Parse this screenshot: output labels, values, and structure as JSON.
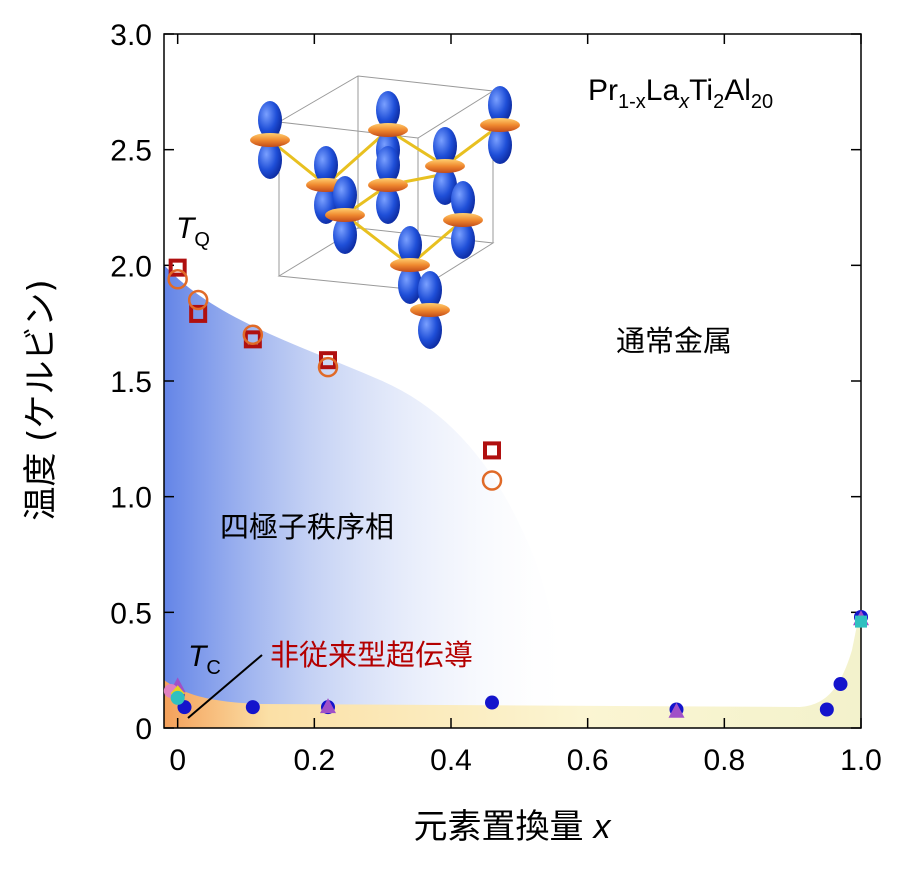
{
  "chart_data": {
    "type": "scatter",
    "title": "",
    "compound_label": {
      "base": [
        "Pr",
        "La",
        "Ti",
        "Al"
      ],
      "subs": [
        "1-x",
        "x",
        "2",
        "20"
      ]
    },
    "xlabel": "元素置換量 x",
    "xlabel_main": "元素置換量",
    "xlabel_var": "x",
    "ylabel": "温度 (ケルビン)",
    "xlim": [
      -0.02,
      1.0
    ],
    "ylim": [
      0,
      3.0
    ],
    "xticks": [
      0,
      0.2,
      0.4,
      0.6,
      0.8,
      1.0
    ],
    "xtick_labels": [
      "0",
      "0.2",
      "0.4",
      "0.6",
      "0.8",
      "1.0"
    ],
    "yticks": [
      0,
      0.5,
      1.0,
      1.5,
      2.0,
      2.5,
      3.0
    ],
    "ytick_labels": [
      "0",
      "0.5",
      "1.0",
      "1.5",
      "2.0",
      "2.5",
      "3.0"
    ],
    "grid": false,
    "annotations": {
      "tq": {
        "sym": "T",
        "sub": "Q"
      },
      "tc": {
        "sym": "T",
        "sub": "C"
      },
      "quadrupole_phase": "四極子秩序相",
      "normal_metal": "通常金属",
      "superconductor": "非従来型超伝導"
    },
    "series": [
      {
        "marker": "square",
        "color": "#b01010",
        "x": [
          0.0,
          0.03,
          0.11,
          0.22,
          0.46
        ],
        "y": [
          1.99,
          1.79,
          1.68,
          1.59,
          1.2
        ]
      },
      {
        "marker": "circle-open",
        "color": "#e06a28",
        "x": [
          0.0,
          0.03,
          0.11,
          0.22,
          0.46
        ],
        "y": [
          1.94,
          1.85,
          1.7,
          1.56,
          1.07
        ]
      },
      {
        "marker": "circle",
        "color": "#1414cc",
        "x": [
          0.0,
          0.01,
          0.11,
          0.22,
          0.46,
          0.73,
          0.95,
          0.97,
          1.0
        ],
        "y": [
          0.14,
          0.09,
          0.09,
          0.09,
          0.11,
          0.08,
          0.08,
          0.19,
          0.48
        ]
      },
      {
        "marker": "triangle",
        "color": "#a050c8",
        "x": [
          0.0,
          0.22,
          0.73,
          1.0
        ],
        "y": [
          0.18,
          0.09,
          0.07,
          0.47
        ]
      },
      {
        "marker": "circle",
        "color": "#e080c0",
        "x": [
          -0.01
        ],
        "y": [
          0.16
        ]
      },
      {
        "marker": "diamond",
        "color": "#e8d020",
        "x": [
          0.0
        ],
        "y": [
          0.15
        ]
      },
      {
        "marker": "circle",
        "color": "#30c0c0",
        "x": [
          0.0
        ],
        "y": [
          0.13
        ]
      },
      {
        "marker": "square",
        "color": "#30c0c0",
        "x": [
          1.0
        ],
        "y": [
          0.46
        ]
      }
    ]
  }
}
